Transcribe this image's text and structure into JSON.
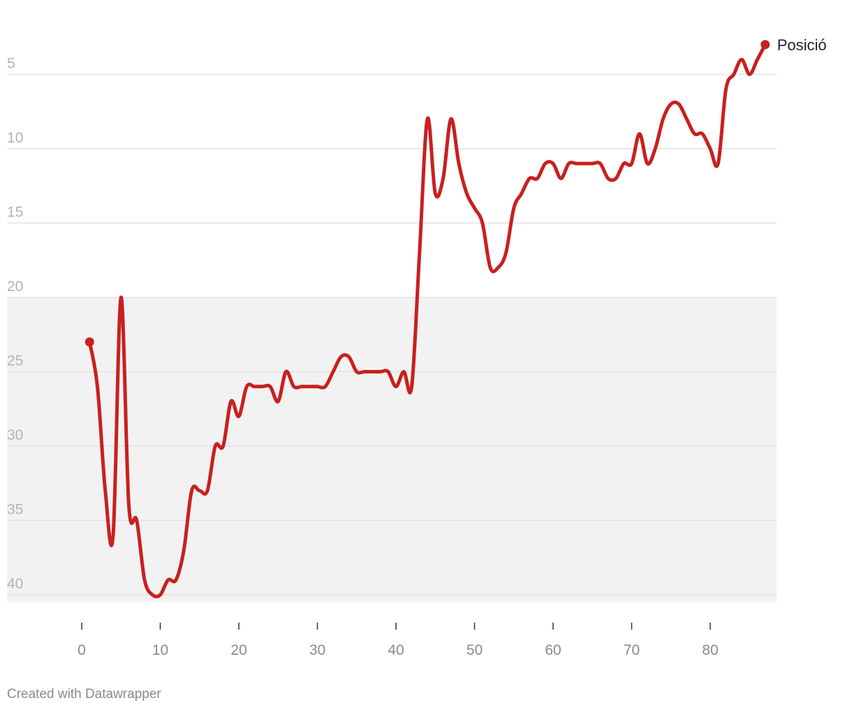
{
  "chart_data": {
    "type": "line",
    "title": "",
    "xlabel": "",
    "ylabel": "",
    "y_reversed": true,
    "xlim": [
      -3,
      89
    ],
    "ylim": [
      1,
      40.5
    ],
    "x_ticks": [
      0,
      10,
      20,
      30,
      40,
      50,
      60,
      70,
      80
    ],
    "y_ticks": [
      5,
      10,
      15,
      20,
      25,
      30,
      35,
      40
    ],
    "shaded_band": {
      "from": 20,
      "to": 40.5,
      "color": "#f2f2f2"
    },
    "grid": true,
    "series": [
      {
        "name": "Posició",
        "color": "#c8201f",
        "x": [
          1,
          2,
          3,
          4,
          5,
          6,
          7,
          8,
          9,
          10,
          11,
          12,
          13,
          14,
          15,
          16,
          17,
          18,
          19,
          20,
          21,
          22,
          23,
          24,
          25,
          26,
          27,
          28,
          29,
          30,
          31,
          32,
          33,
          34,
          35,
          36,
          37,
          38,
          39,
          40,
          41,
          42,
          43,
          44,
          45,
          46,
          47,
          48,
          49,
          50,
          51,
          52,
          53,
          54,
          55,
          56,
          57,
          58,
          59,
          60,
          61,
          62,
          63,
          64,
          65,
          66,
          67,
          68,
          69,
          70,
          71,
          72,
          73,
          74,
          75,
          76,
          77,
          78,
          79,
          80,
          81,
          82,
          83,
          84,
          85,
          86,
          87
        ],
        "values": [
          23,
          26,
          33,
          36,
          20,
          34,
          35,
          39,
          40,
          40,
          39,
          39,
          37,
          33,
          33,
          33,
          30,
          30,
          27,
          28,
          26,
          26,
          26,
          26,
          27,
          25,
          26,
          26,
          26,
          26,
          26,
          25,
          24,
          24,
          25,
          25,
          25,
          25,
          25,
          26,
          25,
          26,
          17,
          8,
          13,
          12,
          8,
          11,
          13,
          14,
          15,
          18,
          18,
          17,
          14,
          13,
          12,
          12,
          11,
          11,
          12,
          11,
          11,
          11,
          11,
          11,
          12,
          12,
          11,
          11,
          9,
          11,
          10,
          8,
          7,
          7,
          8,
          9,
          9,
          10,
          11,
          6,
          5,
          4,
          5,
          4,
          3
        ]
      }
    ]
  },
  "credit": "Created with Datawrapper"
}
